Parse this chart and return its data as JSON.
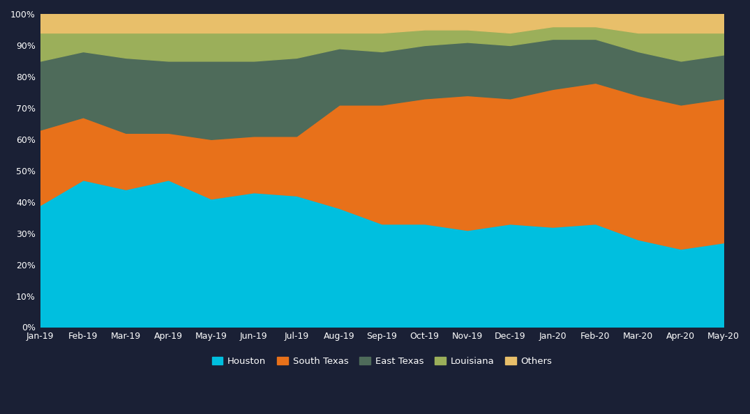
{
  "x_labels": [
    "Jan-19",
    "Feb-19",
    "Mar-19",
    "Apr-19",
    "May-19",
    "Jun-19",
    "Jul-19",
    "Aug-19",
    "Sep-19",
    "Oct-19",
    "Nov-19",
    "Dec-19",
    "Jan-20",
    "Feb-20",
    "Mar-20",
    "Apr-20",
    "May-20"
  ],
  "houston": [
    39,
    47,
    44,
    47,
    41,
    43,
    42,
    38,
    33,
    33,
    31,
    33,
    32,
    33,
    28,
    25,
    27
  ],
  "south_texas": [
    24,
    20,
    18,
    15,
    19,
    18,
    19,
    33,
    38,
    40,
    43,
    40,
    44,
    45,
    46,
    46,
    46
  ],
  "east_texas": [
    22,
    21,
    24,
    23,
    25,
    24,
    25,
    18,
    17,
    17,
    17,
    17,
    16,
    14,
    14,
    14,
    14
  ],
  "louisiana": [
    9,
    6,
    8,
    9,
    9,
    9,
    8,
    5,
    6,
    5,
    4,
    4,
    4,
    4,
    6,
    9,
    7
  ],
  "others": [
    6,
    6,
    6,
    6,
    6,
    6,
    6,
    6,
    6,
    5,
    5,
    6,
    4,
    4,
    6,
    6,
    6
  ],
  "colors": {
    "houston": "#00BFDF",
    "south_texas": "#E8711A",
    "east_texas": "#4E6B5A",
    "louisiana": "#9BAF5A",
    "others": "#E8BF6A"
  },
  "background_color": "#1A2035",
  "plot_bg_color": "#152035",
  "text_color": "#FFFFFF",
  "ylim": [
    0,
    100
  ],
  "legend_labels": [
    "Houston",
    "South Texas",
    "East Texas",
    "Louisiana",
    "Others"
  ],
  "figsize": [
    10.75,
    5.94
  ],
  "dpi": 100
}
